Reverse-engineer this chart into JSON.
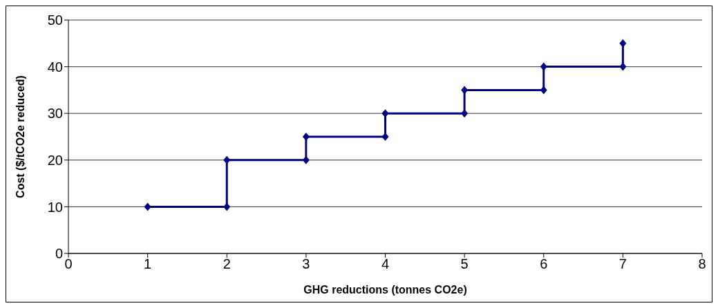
{
  "chart_data": {
    "type": "line",
    "xlabel": "GHG reductions (tonnes CO2e)",
    "ylabel": "Cost ($/tCO2e reduced)",
    "x": [
      1,
      2,
      2,
      3,
      3,
      4,
      4,
      5,
      5,
      6,
      6,
      7,
      7
    ],
    "series": [
      {
        "color": "#000080",
        "values": [
          10,
          10,
          20,
          20,
          25,
          25,
          30,
          30,
          35,
          35,
          40,
          40,
          45
        ]
      }
    ],
    "xlim": [
      0,
      8
    ],
    "xticks": [
      0,
      1,
      2,
      3,
      4,
      5,
      6,
      7,
      8
    ],
    "ylim": [
      0,
      50
    ],
    "yticks": [
      0,
      10,
      20,
      30,
      40,
      50
    ],
    "grid": "y",
    "marker": "diamond",
    "line_style": "solid"
  }
}
